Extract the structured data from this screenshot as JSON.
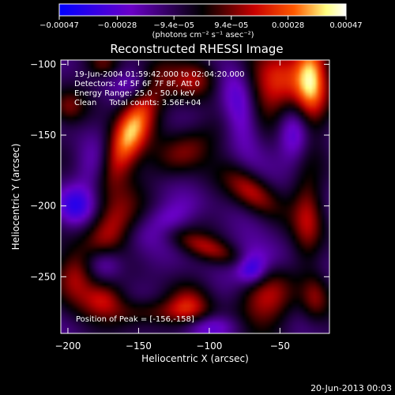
{
  "chart_data": {
    "type": "heatmap",
    "title": "Reconstructed RHESSI Image",
    "xlabel": "Heliocentric X (arcsec)",
    "ylabel": "Heliocentric Y (arcsec)",
    "xlim": [
      -205,
      -15
    ],
    "ylim": [
      -290,
      -97
    ],
    "xticks": [
      -200,
      -150,
      -100,
      -50
    ],
    "yticks": [
      -100,
      -150,
      -200,
      -250
    ],
    "xtick_labels": [
      "−200",
      "−150",
      "−100",
      "−50"
    ],
    "ytick_labels": [
      "−100",
      "−150",
      "−200",
      "−250"
    ],
    "colorbar": {
      "range": [
        -0.00047,
        0.00047
      ],
      "ticks": [
        -0.00047,
        -0.00028,
        -9.4e-05,
        9.4e-05,
        0.00028,
        0.00047
      ],
      "tick_labels": [
        "−0.00047",
        "−0.00028",
        "−9.4e−05",
        "9.4e−05",
        "0.00028",
        "0.00047"
      ],
      "units_label": "(photons cm⁻² s⁻¹ asec⁻²)",
      "colormap": [
        "#0000ff",
        "#6a00c8",
        "#000000",
        "#c80000",
        "#ff5a00",
        "#ffff80",
        "#ffffff"
      ]
    },
    "annotations": [
      "19-Jun-2004 01:59:42.000 to 02:04:20.000",
      "Detectors: 4F 5F 6F 7F 8F, Att 0",
      "Energy Range: 25.0 - 50.0 keV",
      "Clean     Total counts: 3.56E+04"
    ],
    "peak_label": "Position of Peak = [-156,-158]",
    "peak": [
      -156,
      -158
    ],
    "blobs": [
      {
        "x": -157,
        "y": -150,
        "sx": 9,
        "sy": 30,
        "rot": -25,
        "amp": 1.0
      },
      {
        "x": -170,
        "y": -215,
        "sx": 10,
        "sy": 18,
        "rot": -30,
        "amp": 0.55
      },
      {
        "x": -52,
        "y": -115,
        "sx": 14,
        "sy": 22,
        "rot": -20,
        "amp": 0.7
      },
      {
        "x": -28,
        "y": -110,
        "sx": 8,
        "sy": 22,
        "rot": 0,
        "amp": 0.9
      },
      {
        "x": -110,
        "y": -110,
        "sx": 12,
        "sy": 10,
        "rot": 0,
        "amp": 0.55
      },
      {
        "x": -115,
        "y": -160,
        "sx": 18,
        "sy": 10,
        "rot": 35,
        "amp": 0.45
      },
      {
        "x": -70,
        "y": -190,
        "sx": 15,
        "sy": 8,
        "rot": -40,
        "amp": 0.55
      },
      {
        "x": -30,
        "y": -210,
        "sx": 8,
        "sy": 24,
        "rot": 0,
        "amp": 0.5
      },
      {
        "x": -100,
        "y": -230,
        "sx": 22,
        "sy": 6,
        "rot": -20,
        "amp": 0.45
      },
      {
        "x": -195,
        "y": -250,
        "sx": 10,
        "sy": 14,
        "rot": 0,
        "amp": 0.6
      },
      {
        "x": -175,
        "y": -265,
        "sx": 10,
        "sy": 8,
        "rot": 0,
        "amp": 0.45
      },
      {
        "x": -140,
        "y": -275,
        "sx": 25,
        "sy": 7,
        "rot": 0,
        "amp": 0.4
      },
      {
        "x": -60,
        "y": -265,
        "sx": 14,
        "sy": 14,
        "rot": 0,
        "amp": 0.55
      },
      {
        "x": -115,
        "y": -270,
        "sx": 10,
        "sy": 10,
        "rot": 0,
        "amp": 0.4
      },
      {
        "x": -25,
        "y": -265,
        "sx": 7,
        "sy": 12,
        "rot": 0,
        "amp": 0.4
      },
      {
        "x": -200,
        "y": -130,
        "sx": 8,
        "sy": 8,
        "rot": 0,
        "amp": 0.35
      },
      {
        "x": -175,
        "y": -100,
        "sx": 8,
        "sy": 6,
        "rot": 0,
        "amp": 0.35
      },
      {
        "x": -78,
        "y": -133,
        "sx": 9,
        "sy": 20,
        "rot": 10,
        "amp": -0.6
      },
      {
        "x": -40,
        "y": -150,
        "sx": 8,
        "sy": 14,
        "rot": 0,
        "amp": -0.5
      },
      {
        "x": -180,
        "y": -175,
        "sx": 10,
        "sy": 14,
        "rot": 0,
        "amp": -0.35
      },
      {
        "x": -195,
        "y": -200,
        "sx": 10,
        "sy": 10,
        "rot": 0,
        "amp": -0.55
      },
      {
        "x": -130,
        "y": -210,
        "sx": 16,
        "sy": 8,
        "rot": 30,
        "amp": -0.3
      },
      {
        "x": -65,
        "y": -240,
        "sx": 14,
        "sy": 10,
        "rot": 0,
        "amp": -0.35
      },
      {
        "x": -70,
        "y": -245,
        "sx": 7,
        "sy": 7,
        "rot": 0,
        "amp": -0.5
      },
      {
        "x": -175,
        "y": -240,
        "sx": 10,
        "sy": 8,
        "rot": 0,
        "amp": -0.4
      },
      {
        "x": -100,
        "y": -285,
        "sx": 14,
        "sy": 6,
        "rot": 0,
        "amp": -0.35
      },
      {
        "x": -150,
        "y": -115,
        "sx": 10,
        "sy": 8,
        "rot": 0,
        "amp": -0.3
      }
    ]
  },
  "footer_timestamp": "20-Jun-2013 00:03"
}
